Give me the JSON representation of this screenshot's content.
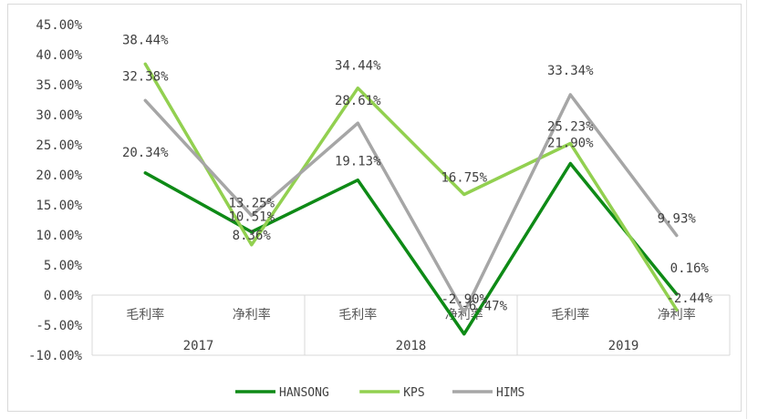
{
  "chart_data": {
    "type": "line",
    "title": "",
    "xlabel": "",
    "ylabel": "",
    "categories": [
      "毛利率",
      "净利率",
      "毛利率",
      "净利率",
      "毛利率",
      "净利率"
    ],
    "groups": [
      "2017",
      "2018",
      "2019"
    ],
    "ylim": [
      -10,
      45
    ],
    "yticks": [
      "45.00%",
      "40.00%",
      "35.00%",
      "30.00%",
      "25.00%",
      "20.00%",
      "15.00%",
      "10.00%",
      "5.00%",
      "0.00%",
      "-5.00%",
      "-10.00%"
    ],
    "grid": false,
    "legend_position": "bottom",
    "series": [
      {
        "name": "HANSONG",
        "color": "#0e8a16",
        "values": [
          20.34,
          10.51,
          19.13,
          -6.47,
          21.9,
          0.16
        ],
        "labels": [
          "20.34%",
          "10.51%",
          "19.13%",
          "-6.47%",
          "21.90%",
          "0.16%"
        ]
      },
      {
        "name": "KPS",
        "color": "#92d050",
        "values": [
          38.44,
          8.36,
          34.44,
          16.75,
          25.23,
          -2.44
        ],
        "labels": [
          "38.44%",
          "8.36%",
          "34.44%",
          "16.75%",
          "25.23%",
          "-2.44%"
        ]
      },
      {
        "name": "HIMS",
        "color": "#a6a6a6",
        "values": [
          32.38,
          13.25,
          28.61,
          -2.9,
          33.34,
          9.93
        ],
        "labels": [
          "32.38%",
          "13.25%",
          "28.61%",
          "-2.90%",
          "33.34%",
          "9.93%"
        ]
      }
    ]
  }
}
